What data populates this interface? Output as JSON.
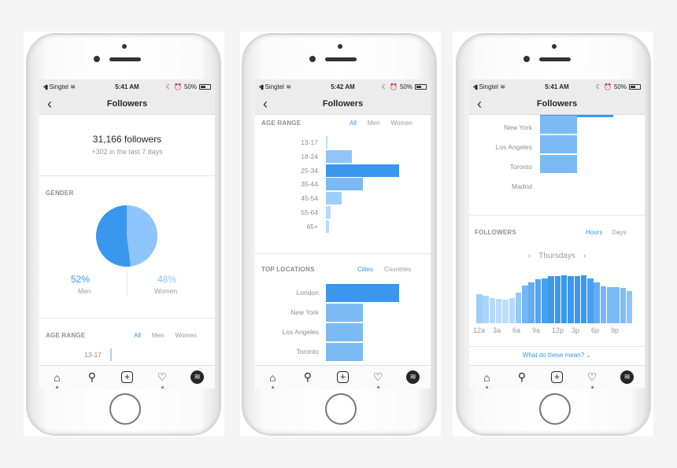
{
  "colors": {
    "accent": "#3897f0",
    "bar_dark": "#3a97ee",
    "bar_light": "#a8d1fb"
  },
  "status": {
    "carrier": "Singtel",
    "battery": "50%",
    "times": [
      "5:41 AM",
      "5:42 AM",
      "5:41 AM"
    ]
  },
  "nav": {
    "title": "Followers",
    "back_icon": "chevron-left-icon"
  },
  "summary": {
    "count": "31,166 followers",
    "delta": "+302 in the last 7 days"
  },
  "gender": {
    "title": "GENDER",
    "men_pct": "52%",
    "men_label": "Men",
    "women_pct": "48%",
    "women_label": "Women",
    "men_value": 52,
    "women_value": 48
  },
  "age": {
    "title": "AGE RANGE",
    "tabs": [
      "All",
      "Men",
      "Women"
    ],
    "active_tab": "All",
    "categories": [
      "13-17",
      "18-24",
      "25-34",
      "35-44",
      "45-54",
      "55-64",
      "65+"
    ],
    "relative_values": [
      2,
      35,
      100,
      51,
      22,
      6,
      4
    ]
  },
  "locations": {
    "title": "TOP LOCATIONS",
    "tabs": [
      "Cities",
      "Countries"
    ],
    "active_tab": "Cities",
    "cities": [
      "London",
      "New York",
      "Los Angeles",
      "Toronto",
      "Madrid"
    ],
    "relative_values": [
      100,
      50,
      50,
      50,
      0
    ]
  },
  "hours": {
    "title": "FOLLOWERS",
    "tabs": [
      "Hours",
      "Days"
    ],
    "active_tab": "Hours",
    "day": "Thursdays",
    "prev_icon": "chevron-left-icon",
    "next_icon": "chevron-right-icon",
    "tick_labels": [
      "12a",
      "3a",
      "6a",
      "9a",
      "12p",
      "3p",
      "6p",
      "9p"
    ],
    "relative_values": [
      61,
      57,
      53,
      51,
      50,
      53,
      64,
      78,
      85,
      91,
      94,
      98,
      99,
      100,
      99,
      99,
      100,
      94,
      85,
      77,
      75,
      76,
      74,
      68
    ],
    "help_link": "What do these mean?"
  },
  "tabbar": [
    "home-icon",
    "search-icon",
    "add-icon",
    "heart-icon",
    "layers-icon"
  ]
}
